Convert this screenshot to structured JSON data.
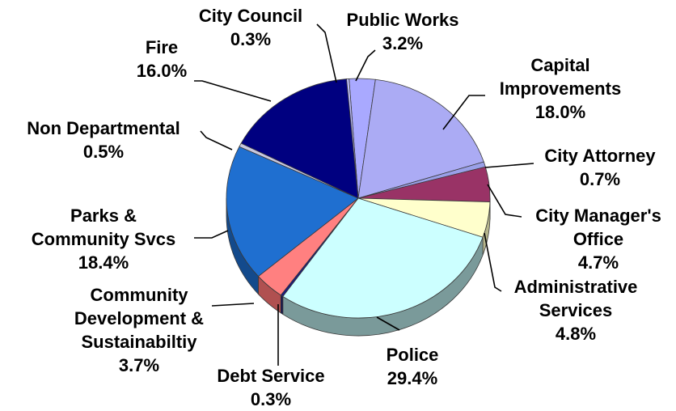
{
  "chart_data": {
    "type": "pie",
    "title": "",
    "slices": [
      {
        "name": "Public Works",
        "value": 3.2,
        "label": [
          "Public Works",
          "3.2%"
        ],
        "color": "#a9a9ff",
        "side_color": "#6f6fbf"
      },
      {
        "name": "Capital Improvements",
        "value": 18.0,
        "label": [
          "Capital",
          "Improvements",
          "18.0%"
        ],
        "color": "#ababf4",
        "side_color": "#7070b8"
      },
      {
        "name": "City Attorney",
        "value": 0.7,
        "label": [
          "City Attorney",
          "0.7%"
        ],
        "color": "#9aa0e8",
        "side_color": "#6066a8"
      },
      {
        "name": "City Manager's Office",
        "value": 4.7,
        "label": [
          "City Manager's",
          "Office",
          "4.7%"
        ],
        "color": "#993366",
        "side_color": "#66203f"
      },
      {
        "name": "Administrative Services",
        "value": 4.8,
        "label": [
          "Administrative",
          "Services",
          "4.8%"
        ],
        "color": "#ffffcc",
        "side_color": "#b5b58c"
      },
      {
        "name": "Police",
        "value": 29.4,
        "label": [
          "Police",
          "29.4%"
        ],
        "color": "#ccffff",
        "side_color": "#7a9a9a"
      },
      {
        "name": "Debt Service",
        "value": 0.3,
        "label": [
          "Debt Service",
          "0.3%"
        ],
        "color": "#1a1a80",
        "side_color": "#101050"
      },
      {
        "name": "Community Development & Sustainabiltiy",
        "value": 3.7,
        "label": [
          "Community",
          "Development &",
          "Sustainabiltiy",
          "3.7%"
        ],
        "color": "#ff8080",
        "side_color": "#b05050"
      },
      {
        "name": "Parks & Community Svcs",
        "value": 18.4,
        "label": [
          "Parks &",
          "Community Svcs",
          "18.4%"
        ],
        "color": "#1f6fd0",
        "side_color": "#134a8c"
      },
      {
        "name": "Non Departmental",
        "value": 0.5,
        "label": [
          "Non Departmental",
          "0.5%"
        ],
        "color": "#c8c8e0",
        "side_color": "#8c8ca0"
      },
      {
        "name": "Fire",
        "value": 16.0,
        "label": [
          "Fire",
          "16.0%"
        ],
        "color": "#000080",
        "side_color": "#000050"
      },
      {
        "name": "City Council",
        "value": 0.3,
        "label": [
          "City Council",
          "0.3%"
        ],
        "color": "#c0c0ff",
        "side_color": "#8080c0"
      }
    ],
    "legend": "none"
  }
}
